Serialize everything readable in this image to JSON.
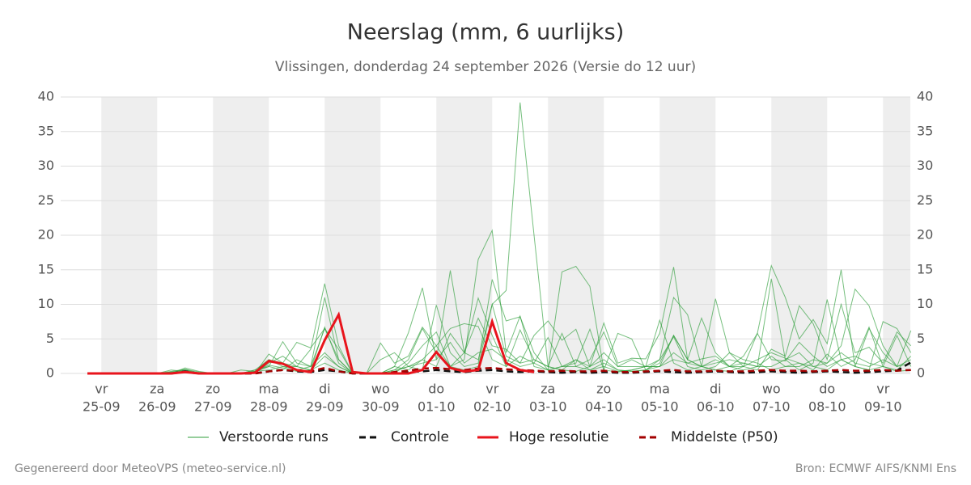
{
  "chart_data": {
    "type": "line",
    "title": "Neerslag (mm, 6 uurlijks)",
    "subtitle": "Vlissingen, donderdag 24 september 2026 (Versie do 12 uur)",
    "footer_left": "Gegenereerd door MeteoVPS (meteo-service.nl)",
    "footer_right": "Bron: ECMWF AIFS/KNMI Ens",
    "categories": [
      null,
      "25-09",
      null,
      null,
      null,
      "26-09",
      null,
      null,
      null,
      "27-09",
      null,
      null,
      null,
      "28-09",
      null,
      null,
      null,
      "29-09",
      null,
      null,
      null,
      "30-09",
      null,
      null,
      null,
      "01-10",
      null,
      null,
      null,
      "02-10",
      null,
      null,
      null,
      "03-10",
      null,
      null,
      null,
      "04-10",
      null,
      null,
      null,
      "05-10",
      null,
      null,
      null,
      "06-10",
      null,
      null,
      null,
      "07-10",
      null,
      null,
      null,
      "08-10",
      null,
      null,
      null,
      "09-10",
      null,
      null
    ],
    "day_names": [
      null,
      "vr",
      null,
      null,
      null,
      "za",
      null,
      null,
      null,
      "zo",
      null,
      null,
      null,
      "ma",
      null,
      null,
      null,
      "di",
      null,
      null,
      null,
      "wo",
      null,
      null,
      null,
      "do",
      null,
      null,
      null,
      "vr",
      null,
      null,
      null,
      "za",
      null,
      null,
      null,
      "zo",
      null,
      null,
      null,
      "ma",
      null,
      null,
      null,
      "di",
      null,
      null,
      null,
      "wo",
      null,
      null,
      null,
      "do",
      null,
      null,
      null,
      "vr",
      null,
      null
    ],
    "ylim": [
      0,
      40
    ],
    "yticks": [
      0,
      5,
      10,
      15,
      20,
      25,
      30,
      35,
      40
    ],
    "grid": true,
    "ensemble": {
      "name": "Verstoorde runs",
      "color": "#2e9e3a",
      "members": [
        [
          0,
          0,
          0,
          0,
          0,
          0,
          0.2,
          0.5,
          0,
          0,
          0,
          0,
          0.3,
          1.2,
          0.8,
          0.3,
          0.5,
          2.5,
          1,
          0,
          0,
          0,
          0.3,
          1,
          2,
          4,
          1,
          0.5,
          1,
          10,
          12,
          39.2,
          20,
          1,
          0.5,
          0.3,
          1,
          2,
          0.5,
          0.3,
          0.5,
          1.5,
          5.5,
          2,
          1,
          0.5,
          0.3,
          1,
          2,
          3,
          2.2,
          1.5,
          1,
          0.5,
          2,
          1,
          0.5,
          1,
          0.3,
          0.5
        ],
        [
          0,
          0,
          0,
          0,
          0,
          0,
          0,
          0.8,
          0.3,
          0,
          0,
          0,
          0.5,
          2,
          1,
          0.5,
          1,
          6.5,
          2,
          0,
          0,
          0,
          0.5,
          2,
          6.5,
          3,
          1,
          2,
          16.5,
          20.7,
          3,
          8.3,
          1,
          0.5,
          1,
          1.5,
          6.4,
          0.5,
          0.2,
          0.5,
          1,
          7.7,
          1.5,
          0.5,
          1,
          2,
          1,
          0.5,
          1,
          13.7,
          2,
          0.5,
          1.5,
          10.7,
          2,
          1,
          6.5,
          3,
          1,
          2
        ],
        [
          0,
          0,
          0,
          0,
          0,
          0,
          0.3,
          0.6,
          0,
          0,
          0,
          0,
          0,
          2.8,
          1.5,
          1,
          3.5,
          13,
          4,
          0,
          0,
          2,
          3,
          1,
          0.5,
          9.9,
          3,
          1,
          1.5,
          13.6,
          7.6,
          8.2,
          3,
          0.5,
          14.7,
          15.5,
          12.6,
          0.5,
          5.8,
          5,
          0.5,
          2,
          11,
          8.5,
          1,
          1.5,
          2,
          1.5,
          1,
          1,
          2,
          3,
          1,
          1.5,
          4,
          12.2,
          9.8,
          4,
          1,
          6.2
        ],
        [
          0,
          0,
          0,
          0,
          0,
          0,
          0.5,
          0.3,
          0,
          0,
          0,
          0,
          0.5,
          1,
          4.6,
          1.5,
          1,
          11,
          2,
          0,
          0,
          0,
          1,
          5.9,
          12.4,
          2,
          14.9,
          3,
          2,
          10,
          2.5,
          1.5,
          5.5,
          7.6,
          4.8,
          6.4,
          1,
          7.3,
          1.5,
          2.2,
          2.1,
          5.8,
          15.4,
          2,
          1,
          10.8,
          3,
          1,
          5.8,
          15.6,
          11,
          5,
          7.8,
          4.3,
          15,
          1,
          0.5,
          7.5,
          6.5,
          3
        ],
        [
          0,
          0,
          0,
          0,
          0,
          0,
          0.2,
          0.2,
          0,
          0,
          0,
          0.5,
          0.3,
          2,
          1.5,
          4.5,
          3.7,
          6.5,
          3.5,
          0,
          0,
          4.4,
          1.5,
          2.5,
          6.7,
          4,
          6.5,
          7.2,
          6.8,
          2,
          1,
          6.3,
          2,
          1,
          5.8,
          1,
          2,
          6,
          1,
          2,
          1,
          1,
          5.5,
          2,
          8,
          3,
          1,
          1,
          0.5,
          3.5,
          2.5,
          9.8,
          7.2,
          2,
          10,
          3,
          3.8,
          1.5,
          6,
          4
        ],
        [
          0,
          0,
          0,
          0,
          0,
          0,
          0,
          0.4,
          0,
          0,
          0,
          0,
          0.2,
          1,
          0.5,
          2,
          1,
          3,
          1,
          0,
          0,
          0,
          0,
          1.5,
          4,
          6,
          1,
          3,
          10.9,
          5.5,
          1,
          2.5,
          1.5,
          5.2,
          1,
          1,
          0.5,
          1,
          0.3,
          0.5,
          1,
          1,
          3,
          1.5,
          2.1,
          2.5,
          1,
          2.5,
          5.8,
          2,
          1.8,
          4.5,
          2.5,
          1,
          2,
          2.5,
          1.5,
          1,
          0.5,
          2.5
        ],
        [
          0,
          0,
          0,
          0,
          0,
          0,
          0,
          0.3,
          0,
          0,
          0,
          0,
          0,
          1.5,
          2.5,
          1,
          0.5,
          1.5,
          0.5,
          0,
          0,
          0,
          1,
          0.5,
          2,
          1,
          5.8,
          3,
          8,
          4,
          3.5,
          1.5,
          2,
          1,
          0.5,
          2,
          1,
          3,
          1,
          1,
          1,
          2,
          5.3,
          1,
          0.5,
          1,
          3,
          2,
          1.5,
          0.5,
          1,
          1.5,
          0.5,
          2.8,
          1,
          2,
          6.7,
          1,
          5.5,
          1
        ],
        [
          0,
          0,
          0,
          0,
          0,
          0,
          0,
          0.6,
          0.2,
          0,
          0,
          0,
          0.3,
          0.5,
          1,
          1,
          0.5,
          6.7,
          1.5,
          0,
          0,
          0,
          0.5,
          1,
          1.5,
          2,
          4.5,
          1.5,
          3,
          3.5,
          2,
          1,
          1.5,
          0.5,
          1,
          2,
          0.5,
          1.5,
          0.5,
          0.3,
          0.5,
          1,
          2,
          1.5,
          1,
          0.5,
          1,
          1.5,
          1,
          2.5,
          1,
          1,
          2,
          1.5,
          3,
          1.5,
          1,
          2,
          1,
          1.5
        ]
      ]
    },
    "series": [
      {
        "name": "Controle",
        "color": "#111111",
        "dashed": true,
        "values": [
          0,
          0,
          0,
          0,
          0,
          0,
          0,
          0.3,
          0,
          0,
          0,
          0,
          0,
          0.3,
          0.5,
          0.3,
          0.2,
          0.5,
          0.3,
          0,
          0,
          0,
          0,
          0.2,
          0.3,
          0.5,
          0.3,
          0.2,
          0.4,
          0.5,
          0.3,
          0.2,
          0.3,
          0.2,
          0.1,
          0.2,
          0.1,
          0.2,
          0.1,
          0.1,
          0.2,
          0.3,
          0.2,
          0.1,
          0.2,
          0.3,
          0.2,
          0.1,
          0.2,
          0.3,
          0.2,
          0.1,
          0.2,
          0.3,
          0.2,
          0.1,
          0.2,
          0.3,
          0.4,
          1.6
        ]
      },
      {
        "name": "Hoge resolutie",
        "color": "#e8141c",
        "dashed": false,
        "values": [
          0,
          0,
          0,
          0,
          0,
          0,
          0,
          0.2,
          0,
          0,
          0,
          0,
          0.1,
          1.8,
          1.4,
          0.5,
          0.2,
          4.8,
          8.5,
          0.2,
          0,
          0,
          0,
          0,
          0.5,
          3.1,
          0.8,
          0.3,
          0.5,
          7.5,
          1.5,
          0.5,
          0.2,
          null,
          null,
          null,
          null,
          null,
          null,
          null,
          null,
          null,
          null,
          null,
          null,
          null,
          null,
          null,
          null,
          null,
          null,
          null,
          null,
          null,
          null,
          null,
          null,
          null,
          null,
          null
        ]
      },
      {
        "name": "Middelste (P50)",
        "color": "#a30000",
        "dashed": true,
        "values": [
          0,
          0,
          0,
          0,
          0,
          0,
          0,
          0.2,
          0,
          0,
          0,
          0,
          0,
          0.3,
          0.5,
          0.4,
          0.3,
          0.8,
          0.3,
          0,
          0,
          0,
          0.2,
          0.4,
          0.7,
          0.8,
          0.6,
          0.5,
          0.7,
          0.8,
          0.6,
          0.5,
          0.4,
          0.3,
          0.4,
          0.3,
          0.3,
          0.4,
          0.2,
          0.2,
          0.3,
          0.4,
          0.5,
          0.3,
          0.3,
          0.4,
          0.3,
          0.3,
          0.4,
          0.5,
          0.4,
          0.4,
          0.3,
          0.4,
          0.5,
          0.4,
          0.4,
          0.5,
          0.4,
          0.5
        ]
      }
    ]
  }
}
